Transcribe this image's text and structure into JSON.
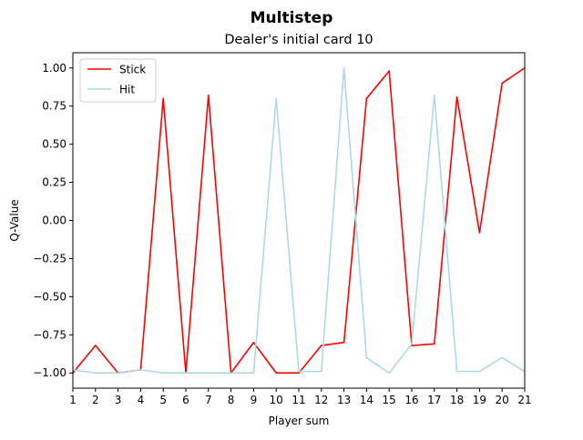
{
  "chart_data": {
    "type": "line",
    "suptitle": "Multistep",
    "title": "Dealer's initial card 10",
    "xlabel": "Player sum",
    "ylabel": "Q-Value",
    "x": [
      1,
      2,
      3,
      4,
      5,
      6,
      7,
      8,
      9,
      10,
      11,
      12,
      13,
      14,
      15,
      16,
      17,
      18,
      19,
      20,
      21
    ],
    "xlim": [
      1,
      21
    ],
    "ylim": [
      -1.1,
      1.1
    ],
    "xticks": [
      "1",
      "2",
      "3",
      "4",
      "5",
      "6",
      "7",
      "8",
      "9",
      "10",
      "11",
      "12",
      "13",
      "14",
      "15",
      "16",
      "17",
      "18",
      "19",
      "20",
      "21"
    ],
    "yticks": [
      "−1.00",
      "−0.75",
      "−0.50",
      "−0.25",
      "0.00",
      "0.25",
      "0.50",
      "0.75",
      "1.00"
    ],
    "ytick_values": [
      -1.0,
      -0.75,
      -0.5,
      -0.25,
      0.0,
      0.25,
      0.5,
      0.75,
      1.0
    ],
    "grid": false,
    "legend": "top-left",
    "series": [
      {
        "name": "Stick",
        "color": "#ff0000",
        "values": [
          -1.0,
          -0.82,
          -1.0,
          -0.98,
          0.8,
          -1.0,
          0.82,
          -1.0,
          -0.8,
          -1.0,
          -1.0,
          -0.82,
          -0.8,
          0.8,
          0.98,
          -0.82,
          -0.81,
          0.81,
          -0.08,
          0.9,
          1.0
        ]
      },
      {
        "name": "Hit",
        "color": "#add8e6",
        "values": [
          -0.98,
          -1.0,
          -1.0,
          -0.98,
          -1.0,
          -1.0,
          -1.0,
          -1.0,
          -1.0,
          0.8,
          -0.99,
          -0.99,
          1.0,
          -0.9,
          -1.0,
          -0.81,
          0.82,
          -0.99,
          -0.99,
          -0.9,
          -0.99
        ]
      }
    ]
  }
}
